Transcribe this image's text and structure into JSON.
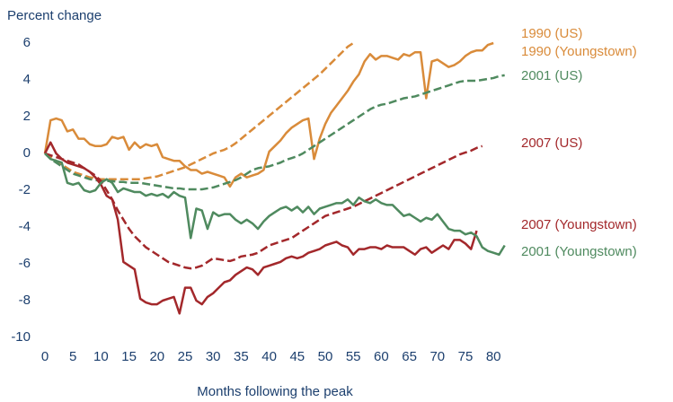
{
  "chart_data": {
    "type": "line",
    "y_label": "Percent change",
    "x_label": "Months following the peak",
    "xlim": [
      0,
      82
    ],
    "ylim": [
      -10,
      6
    ],
    "xticks": [
      0,
      5,
      10,
      15,
      20,
      25,
      30,
      35,
      40,
      45,
      50,
      55,
      60,
      65,
      70,
      75,
      80
    ],
    "yticks": [
      -10,
      -8,
      -6,
      -4,
      -2,
      0,
      2,
      4,
      6
    ],
    "grid": false,
    "legend": "right",
    "x": [
      0,
      1,
      2,
      3,
      4,
      5,
      6,
      7,
      8,
      9,
      10,
      11,
      12,
      13,
      14,
      15,
      16,
      17,
      18,
      19,
      20,
      21,
      22,
      23,
      24,
      25,
      26,
      27,
      28,
      29,
      30,
      31,
      32,
      33,
      34,
      35,
      36,
      37,
      38,
      39,
      40,
      41,
      42,
      43,
      44,
      45,
      46,
      47,
      48,
      49,
      50,
      51,
      52,
      53,
      54,
      55,
      56,
      57,
      58,
      59,
      60,
      61,
      62,
      63,
      64,
      65,
      66,
      67,
      68,
      69,
      70,
      71,
      72,
      73,
      74,
      75,
      76,
      77,
      78,
      79,
      80,
      81,
      82
    ],
    "series": [
      {
        "name": "1990 (US)",
        "color": "#d98b3a",
        "style": "dashed",
        "values": [
          0,
          -0.2,
          -0.4,
          -0.6,
          -0.8,
          -1,
          -1.1,
          -1.2,
          -1.3,
          -1.35,
          -1.4,
          -1.4,
          -1.4,
          -1.4,
          -1.4,
          -1.4,
          -1.4,
          -1.4,
          -1.35,
          -1.3,
          -1.25,
          -1.15,
          -1.05,
          -0.95,
          -0.85,
          -0.75,
          -0.6,
          -0.45,
          -0.3,
          -0.15,
          0,
          0.1,
          0.2,
          0.35,
          0.55,
          0.8,
          1.05,
          1.3,
          1.55,
          1.8,
          2.05,
          2.3,
          2.55,
          2.8,
          3.05,
          3.3,
          3.55,
          3.8,
          4.05,
          4.3,
          4.6,
          4.9,
          5.2,
          5.5,
          5.8,
          6.0,
          null,
          null,
          null,
          null,
          null,
          null,
          null,
          null,
          null,
          null,
          null,
          null,
          null,
          null,
          null,
          null,
          null,
          null,
          null,
          null,
          null,
          null,
          null,
          null,
          null,
          null,
          null
        ]
      },
      {
        "name": "1990 (Youngstown)",
        "color": "#d98b3a",
        "style": "solid",
        "values": [
          0,
          1.8,
          1.9,
          1.8,
          1.2,
          1.3,
          0.8,
          0.8,
          0.5,
          0.4,
          0.4,
          0.5,
          0.9,
          0.8,
          0.9,
          0.2,
          0.6,
          0.3,
          0.5,
          0.4,
          0.5,
          -0.2,
          -0.3,
          -0.4,
          -0.4,
          -0.7,
          -0.9,
          -0.9,
          -1.1,
          -1,
          -1.1,
          -1.2,
          -1.3,
          -1.8,
          -1.3,
          -1.1,
          -1.3,
          -1.2,
          -1.1,
          -0.9,
          0.1,
          0.4,
          0.7,
          1.1,
          1.4,
          1.6,
          1.8,
          1.9,
          -0.3,
          0.8,
          1.6,
          2.2,
          2.6,
          3.0,
          3.4,
          3.9,
          4.3,
          5.0,
          5.4,
          5.1,
          5.3,
          5.3,
          5.2,
          5.1,
          5.4,
          5.3,
          5.5,
          5.5,
          3.0,
          5.0,
          5.1,
          4.9,
          4.7,
          4.8,
          5.0,
          5.3,
          5.5,
          5.6,
          5.6,
          5.9,
          6.0,
          null,
          null
        ]
      },
      {
        "name": "2001 (US)",
        "color": "#4f8a5f",
        "style": "dashed",
        "values": [
          0,
          -0.3,
          -0.5,
          -0.7,
          -0.9,
          -1.1,
          -1.2,
          -1.3,
          -1.4,
          -1.45,
          -1.5,
          -1.5,
          -1.5,
          -1.55,
          -1.55,
          -1.6,
          -1.6,
          -1.6,
          -1.65,
          -1.7,
          -1.75,
          -1.8,
          -1.85,
          -1.9,
          -1.9,
          -1.95,
          -1.95,
          -1.95,
          -1.95,
          -1.9,
          -1.85,
          -1.75,
          -1.65,
          -1.55,
          -1.45,
          -1.3,
          -1.1,
          -0.9,
          -0.8,
          -0.75,
          -0.7,
          -0.6,
          -0.5,
          -0.35,
          -0.25,
          -0.15,
          0,
          0.2,
          0.4,
          0.6,
          0.8,
          1.0,
          1.2,
          1.4,
          1.6,
          1.8,
          2.0,
          2.2,
          2.4,
          2.55,
          2.65,
          2.7,
          2.8,
          2.9,
          3.0,
          3.05,
          3.1,
          3.2,
          3.3,
          3.4,
          3.5,
          3.6,
          3.7,
          3.8,
          3.9,
          3.95,
          3.95,
          3.95,
          4.0,
          4.05,
          4.1,
          4.2,
          4.25
        ]
      },
      {
        "name": "2007 (US)",
        "color": "#a3282b",
        "style": "dashed",
        "values": [
          0,
          -0.1,
          -0.2,
          -0.3,
          -0.4,
          -0.5,
          -0.6,
          -0.8,
          -1.0,
          -1.2,
          -1.5,
          -2.0,
          -2.5,
          -3.1,
          -3.6,
          -4.1,
          -4.5,
          -4.8,
          -5.1,
          -5.3,
          -5.5,
          -5.7,
          -5.9,
          -6.0,
          -6.1,
          -6.2,
          -6.25,
          -6.2,
          -6.1,
          -5.9,
          -5.7,
          -5.75,
          -5.8,
          -5.85,
          -5.75,
          -5.6,
          -5.55,
          -5.5,
          -5.4,
          -5.2,
          -5.0,
          -4.9,
          -4.8,
          -4.7,
          -4.6,
          -4.4,
          -4.2,
          -4.0,
          -3.8,
          -3.6,
          -3.4,
          -3.3,
          -3.2,
          -3.1,
          -3.0,
          -2.9,
          -2.75,
          -2.6,
          -2.45,
          -2.3,
          -2.15,
          -2.0,
          -1.85,
          -1.7,
          -1.55,
          -1.4,
          -1.25,
          -1.1,
          -0.95,
          -0.8,
          -0.65,
          -0.5,
          -0.35,
          -0.2,
          -0.05,
          0.05,
          0.15,
          0.3,
          0.4,
          null,
          null,
          null,
          null
        ]
      },
      {
        "name": "2007 (Youngstown)",
        "color": "#a3282b",
        "style": "solid",
        "values": [
          0,
          0.6,
          0,
          -0.3,
          -0.5,
          -0.6,
          -0.7,
          -0.8,
          -1.0,
          -1.3,
          -1.7,
          -2.3,
          -2.5,
          -3.6,
          -5.9,
          -6.1,
          -6.3,
          -7.9,
          -8.1,
          -8.2,
          -8.2,
          -8.0,
          -7.9,
          -7.8,
          -8.7,
          -7.3,
          -7.3,
          -8.0,
          -8.2,
          -7.8,
          -7.6,
          -7.3,
          -7.0,
          -6.9,
          -6.6,
          -6.4,
          -6.2,
          -6.3,
          -6.6,
          -6.2,
          -6.1,
          -6.0,
          -5.9,
          -5.7,
          -5.6,
          -5.7,
          -5.6,
          -5.4,
          -5.3,
          -5.2,
          -5.0,
          -4.9,
          -4.8,
          -5.0,
          -5.1,
          -5.5,
          -5.2,
          -5.2,
          -5.1,
          -5.1,
          -5.2,
          -5.0,
          -5.1,
          -5.1,
          -5.1,
          -5.3,
          -5.5,
          -5.2,
          -5.1,
          -5.4,
          -5.2,
          -5.0,
          -5.2,
          -4.7,
          -4.7,
          -4.9,
          -5.2,
          -4.2,
          null,
          null,
          null,
          null,
          null
        ]
      },
      {
        "name": "2001 (Youngstown)",
        "color": "#4f8a5f",
        "style": "solid",
        "values": [
          0,
          -0.3,
          -0.4,
          -0.5,
          -1.6,
          -1.7,
          -1.6,
          -2.0,
          -2.1,
          -2.0,
          -1.6,
          -1.4,
          -1.6,
          -2.1,
          -1.9,
          -2.0,
          -2.1,
          -2.1,
          -2.3,
          -2.2,
          -2.3,
          -2.2,
          -2.4,
          -2.1,
          -2.3,
          -2.4,
          -4.6,
          -3.0,
          -3.1,
          -4.1,
          -3.2,
          -3.4,
          -3.3,
          -3.3,
          -3.6,
          -3.8,
          -3.6,
          -3.8,
          -4.1,
          -3.7,
          -3.4,
          -3.2,
          -3.0,
          -2.9,
          -3.1,
          -2.9,
          -3.2,
          -2.9,
          -3.3,
          -3.0,
          -2.9,
          -2.8,
          -2.7,
          -2.7,
          -2.5,
          -2.8,
          -2.4,
          -2.6,
          -2.7,
          -2.5,
          -2.7,
          -2.8,
          -2.8,
          -3.1,
          -3.4,
          -3.3,
          -3.5,
          -3.7,
          -3.5,
          -3.6,
          -3.3,
          -3.7,
          -4.1,
          -4.2,
          -4.2,
          -4.4,
          -4.3,
          -4.5,
          -5.1,
          -5.3,
          -5.4,
          -5.5,
          -5.0
        ]
      }
    ]
  }
}
